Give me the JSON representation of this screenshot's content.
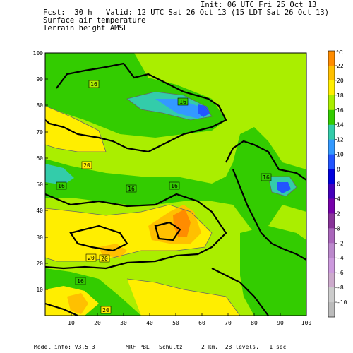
{
  "header": {
    "init": "Init: 06 UTC Fri 25 Oct 13",
    "fcst": "Fcst:  30 h",
    "valid": "Valid: 12 UTC Sat 26 Oct 13 (15 LDT Sat 26 Oct 13)",
    "field1": "Surface air temperature",
    "field2": "Terrain height AMSL"
  },
  "footer": {
    "model": "Model info: V3.5.3",
    "pbl": "MRF PBL",
    "cumulus": "Schultz",
    "grid": "2 km,  28 levels,   1 sec"
  },
  "x_axis_ticks": [
    "10",
    "20",
    "30",
    "40",
    "50",
    "60",
    "70",
    "80",
    "90",
    "100"
  ],
  "y_axis_ticks": [
    "100",
    "90",
    "80",
    "70",
    "60",
    "50",
    "40",
    "30",
    "20",
    "10"
  ],
  "colorbar": {
    "unit": "°C",
    "labels": [
      "22",
      "20",
      "18",
      "16",
      "14",
      "12",
      "10",
      "8",
      "6",
      "4",
      "2",
      "0",
      "-2",
      "-4",
      "-6",
      "-8",
      "-10"
    ],
    "colors": [
      "#ff8c00",
      "#ffc000",
      "#ffee00",
      "#aaee00",
      "#33cc00",
      "#33ccaa",
      "#3399ff",
      "#2255ff",
      "#0000dd",
      "#4400bb",
      "#7700aa",
      "#883399",
      "#aa66bb",
      "#bb88cc",
      "#cc99dd",
      "#ccaacc",
      "#cccccc",
      "#bbbbbb"
    ]
  },
  "contour_labels": [
    "16",
    "16",
    "20",
    "16",
    "16",
    "16",
    "16",
    "16",
    "20",
    "20",
    "16",
    "20"
  ]
}
